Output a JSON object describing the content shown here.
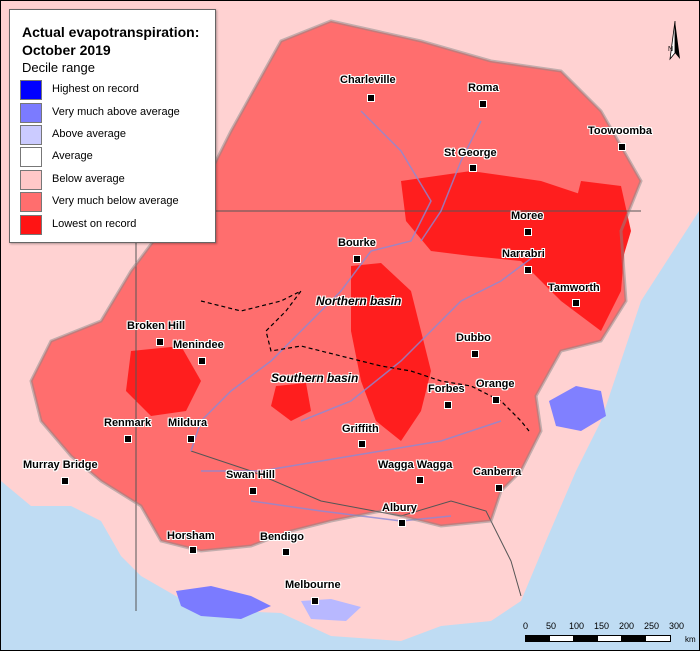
{
  "legend": {
    "title_line1": "Actual evapotranspiration:",
    "title_line2": "October 2019",
    "subtitle": "Decile range",
    "items": [
      {
        "label": "Highest on record",
        "color": "#0000ff"
      },
      {
        "label": "Very much above average",
        "color": "#7b7bff"
      },
      {
        "label": "Above average",
        "color": "#cbcbff"
      },
      {
        "label": "Average",
        "color": "#ffffff"
      },
      {
        "label": "Below average",
        "color": "#ffc8c8"
      },
      {
        "label": "Very much below average",
        "color": "#ff6e6e"
      },
      {
        "label": "Lowest on record",
        "color": "#ff1414"
      }
    ]
  },
  "regions": {
    "northern_basin": "Northern basin",
    "southern_basin": "Southern basin"
  },
  "places": [
    "Charleville",
    "Roma",
    "Toowoomba",
    "St George",
    "Moree",
    "Bourke",
    "Narrabri",
    "Tamworth",
    "Broken Hill",
    "Menindee",
    "Dubbo",
    "Orange",
    "Forbes",
    "Renmark",
    "Mildura",
    "Griffith",
    "Murray Bridge",
    "Wagga Wagga",
    "Canberra",
    "Swan Hill",
    "Albury",
    "Horsham",
    "Bendigo",
    "Melbourne"
  ],
  "scale_bar": {
    "ticks": [
      "0",
      "50",
      "100",
      "150",
      "200",
      "250",
      "300"
    ],
    "unit": "km"
  },
  "north_arrow": "N",
  "colors": {
    "ocean": "#bfdcf3",
    "outside_basin": "#ffd9d9",
    "basin_fill": "#ff6e6e",
    "lowest": "#ff1414",
    "rivers": "#8a8ad8"
  }
}
